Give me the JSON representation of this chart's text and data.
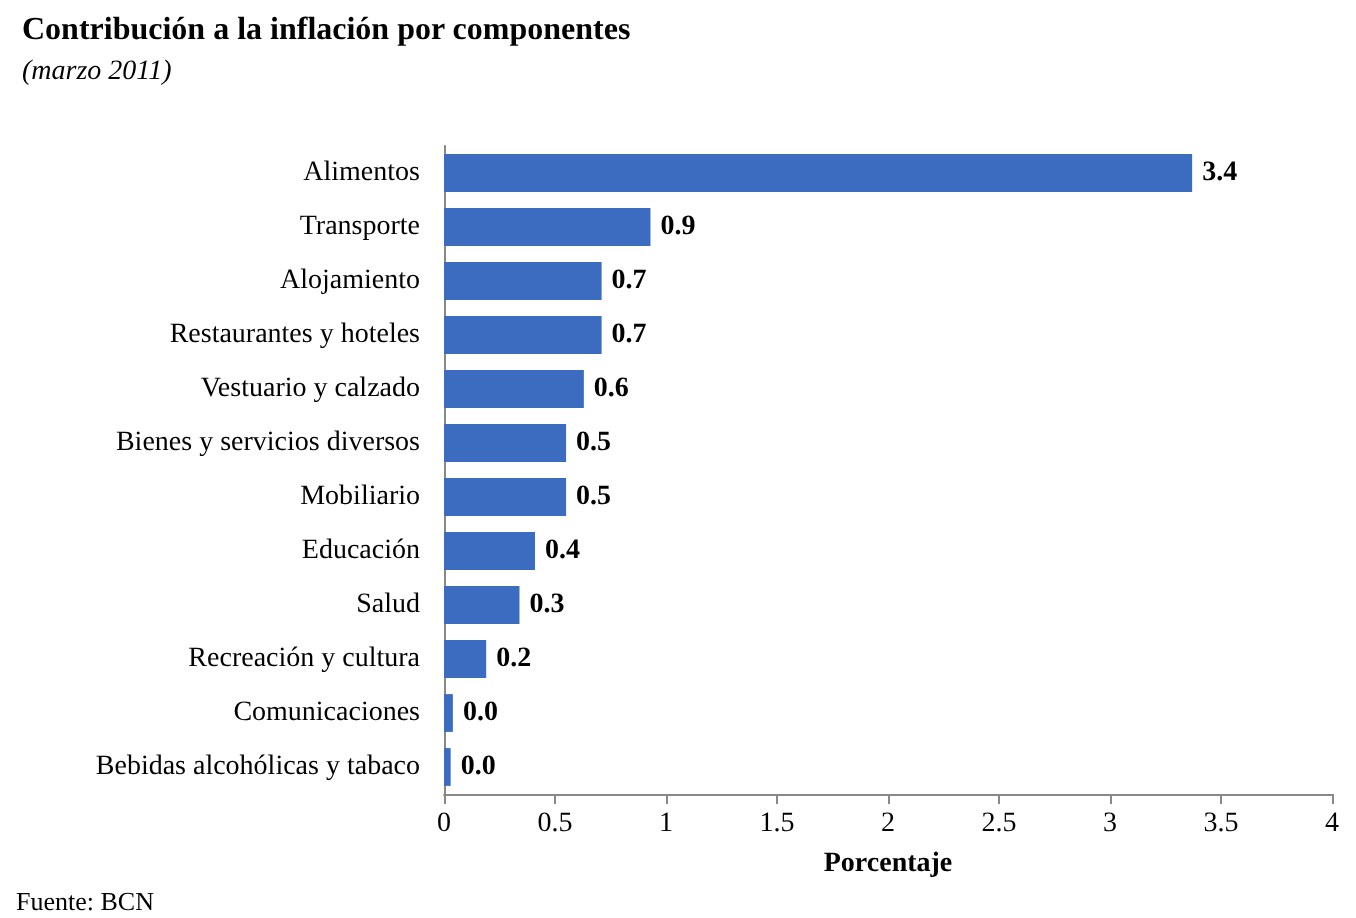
{
  "chart_data": {
    "type": "bar",
    "orientation": "horizontal",
    "title": "Contribución a la inflación por componentes",
    "subtitle": "(marzo 2011)",
    "xlabel": "Porcentaje",
    "categories": [
      "Alimentos",
      "Transporte",
      "Alojamiento",
      "Restaurantes y hoteles",
      "Vestuario y calzado",
      "Bienes y servicios diversos",
      "Mobiliario",
      "Educación",
      "Salud",
      "Recreación y cultura",
      "Comunicaciones",
      "Bebidas alcohólicas y tabaco"
    ],
    "values": [
      3.37,
      0.93,
      0.71,
      0.71,
      0.63,
      0.55,
      0.55,
      0.41,
      0.34,
      0.19,
      0.04,
      0.03
    ],
    "value_labels": [
      "3.4",
      "0.9",
      "0.7",
      "0.7",
      "0.6",
      "0.5",
      "0.5",
      "0.4",
      "0.3",
      "0.2",
      "0.0",
      "0.0"
    ],
    "color": "#3b6cc0",
    "xlim": [
      0,
      4
    ],
    "xticks": [
      0,
      0.5,
      1,
      1.5,
      2,
      2.5,
      3,
      3.5,
      4
    ],
    "annotations": [
      "Fuente: BCN"
    ]
  }
}
